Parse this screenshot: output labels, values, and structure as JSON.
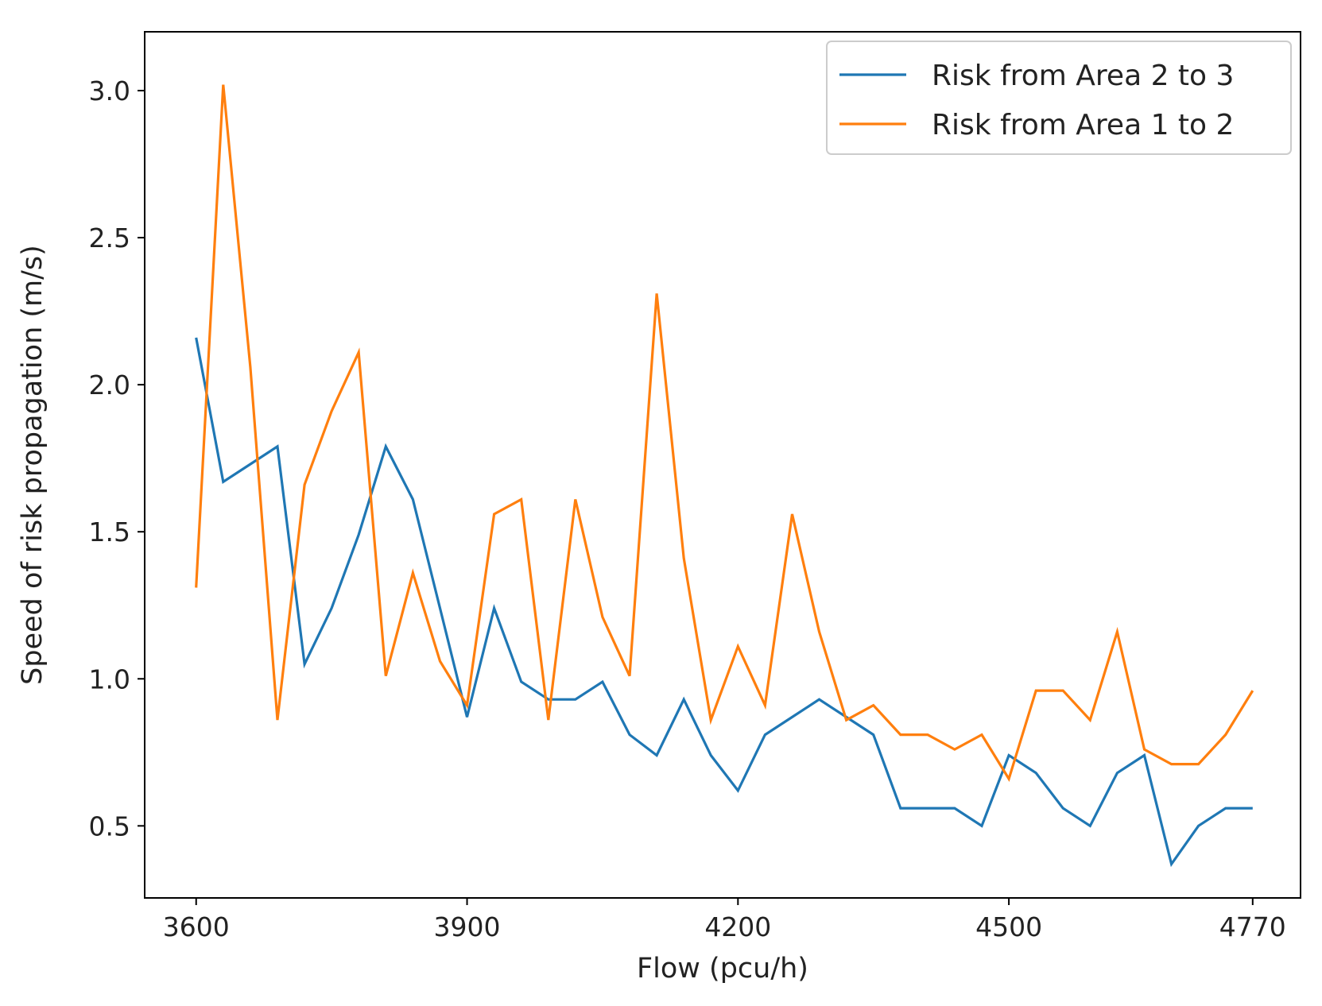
{
  "chart_data": {
    "type": "line",
    "title": "",
    "xlabel": "Flow (pcu/h)",
    "ylabel": "Speed of risk propagation (m/s)",
    "xlim": [
      3543,
      4823
    ],
    "ylim": [
      0.255,
      3.2
    ],
    "grid": false,
    "legend_position": "top-right",
    "xticks": [
      3600,
      3900,
      4200,
      4500,
      4770
    ],
    "xtick_labels": [
      "3600",
      "3900",
      "4200",
      "4500",
      "4770"
    ],
    "yticks": [
      0.5,
      1.0,
      1.5,
      2.0,
      2.5,
      3.0
    ],
    "ytick_labels": [
      "0.5",
      "1.0",
      "1.5",
      "2.0",
      "2.5",
      "3.0"
    ],
    "x": [
      3600,
      3630,
      3660,
      3690,
      3720,
      3750,
      3780,
      3810,
      3840,
      3870,
      3900,
      3930,
      3960,
      3990,
      4020,
      4050,
      4080,
      4110,
      4140,
      4170,
      4200,
      4230,
      4260,
      4290,
      4320,
      4350,
      4380,
      4410,
      4440,
      4470,
      4500,
      4530,
      4560,
      4590,
      4620,
      4650,
      4680,
      4710,
      4740,
      4770
    ],
    "series": [
      {
        "name": "Risk from Area 2 to 3",
        "color": "#1f77b4",
        "values": [
          2.16,
          1.67,
          1.73,
          1.79,
          1.05,
          1.24,
          1.49,
          1.79,
          1.61,
          1.24,
          0.87,
          1.24,
          0.99,
          0.93,
          0.93,
          0.99,
          0.81,
          0.74,
          0.93,
          0.74,
          0.62,
          0.81,
          0.87,
          0.93,
          0.87,
          0.81,
          0.56,
          0.56,
          0.56,
          0.5,
          0.74,
          0.68,
          0.56,
          0.5,
          0.68,
          0.74,
          0.37,
          0.5,
          0.56,
          0.56
        ]
      },
      {
        "name": "Risk from Area 1 to 2",
        "color": "#ff7f0e",
        "values": [
          1.31,
          3.02,
          2.06,
          0.86,
          1.66,
          1.91,
          2.11,
          1.01,
          1.36,
          1.06,
          0.91,
          1.56,
          1.61,
          0.86,
          1.61,
          1.21,
          1.01,
          2.31,
          1.41,
          0.86,
          1.11,
          0.91,
          1.56,
          1.16,
          0.86,
          0.91,
          0.81,
          0.81,
          0.76,
          0.81,
          0.66,
          0.96,
          0.96,
          0.86,
          1.16,
          0.76,
          0.71,
          0.71,
          0.81,
          0.96
        ]
      }
    ]
  }
}
